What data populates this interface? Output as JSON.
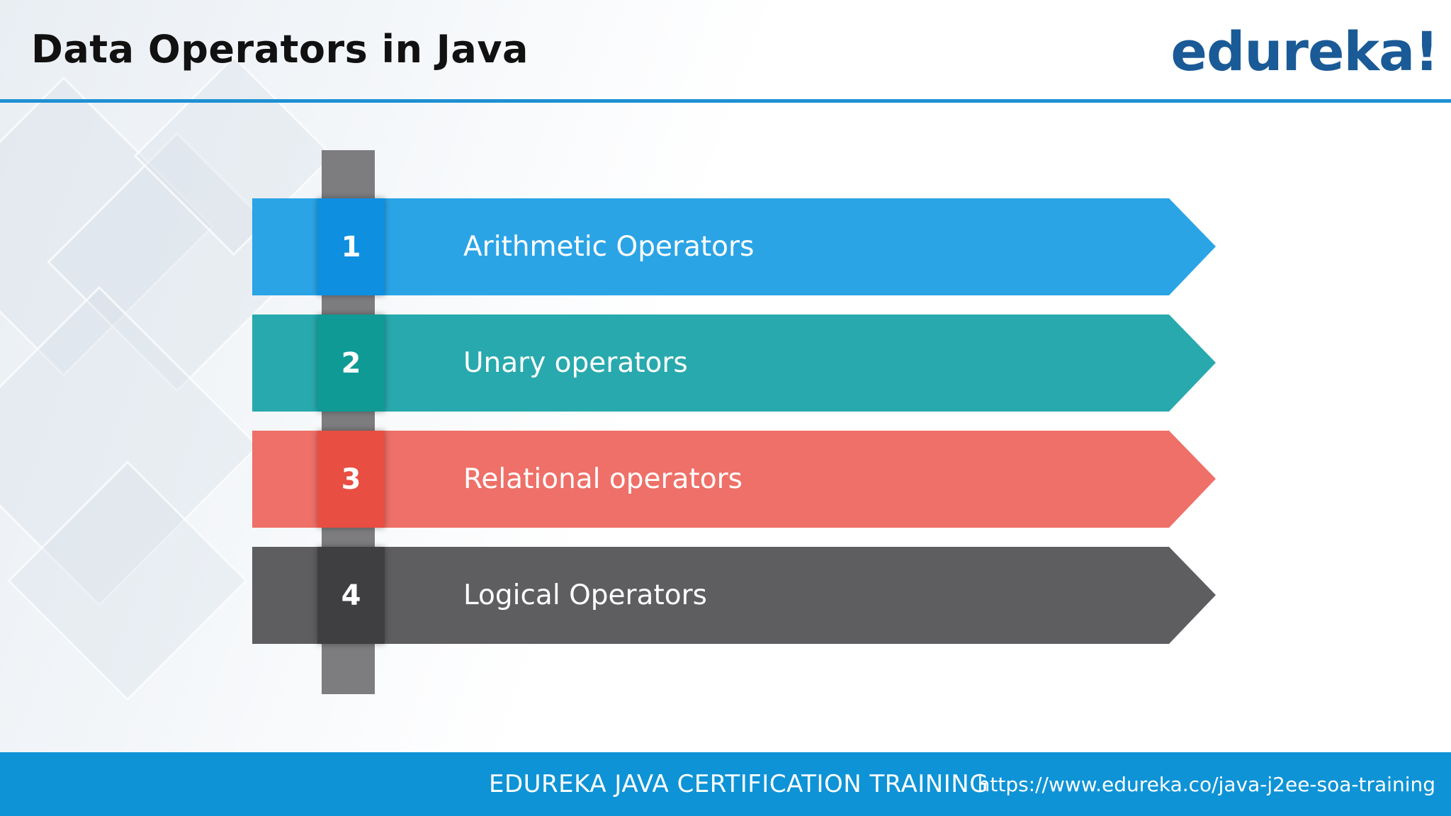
{
  "slide": {
    "title": "Data Operators in Java",
    "logo_text": "edureka!"
  },
  "items": [
    {
      "number": "1",
      "label": "Arithmetic Operators",
      "band_color": "#2ba4e6",
      "box_color": "#0e8fe0"
    },
    {
      "number": "2",
      "label": "Unary operators",
      "band_color": "#28a9ad",
      "box_color": "#0f9a96"
    },
    {
      "number": "3",
      "label": "Relational operators",
      "band_color": "#ee7068",
      "box_color": "#e84e42"
    },
    {
      "number": "4",
      "label": "Logical Operators",
      "band_color": "#5e5d60",
      "box_color": "#3f3e41"
    }
  ],
  "footer": {
    "course": "EDUREKA JAVA CERTIFICATION TRAINING",
    "url": "https://www.edureka.co/java-j2ee-soa-training"
  },
  "colors": {
    "accent": "#1e90d2",
    "logo": "#1a5a96",
    "footer_bg": "#0e93d6"
  }
}
